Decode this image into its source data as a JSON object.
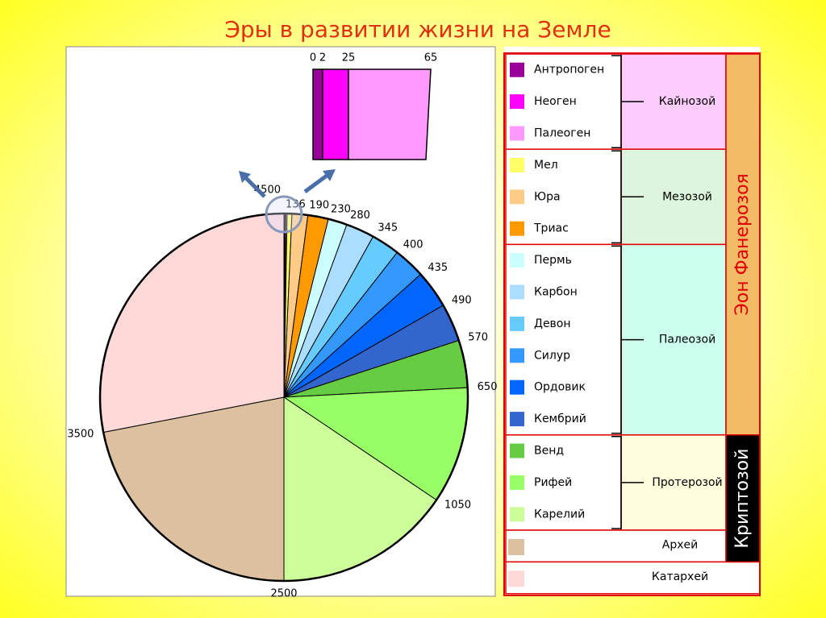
{
  "chart_data": {
    "type": "pie",
    "title": "Эры в развитии жизни на Земле",
    "categories": [
      "Антропоген",
      "Неоген",
      "Палеоген",
      "Мел",
      "Юра",
      "Триас",
      "Пермь",
      "Карбон",
      "Девон",
      "Силур",
      "Ордовик",
      "Кембрий",
      "Венд",
      "Рифей",
      "Карелий",
      "Архей",
      "Катархей"
    ],
    "values": [
      0.3,
      0.3,
      0.4,
      1.5,
      5,
      6.5,
      6,
      9,
      9,
      10,
      12,
      12,
      15,
      37,
      56,
      79,
      101
    ],
    "colors": [
      "#990099",
      "#ff00ff",
      "#ff99ff",
      "#ffff66",
      "#ffcc88",
      "#ff9900",
      "#ccffff",
      "#aaddff",
      "#66ccff",
      "#3399ff",
      "#0066ff",
      "#3366cc",
      "#66cc44",
      "#99ff66",
      "#ccff99",
      "#dcc0a0",
      "#ffd8d8"
    ],
    "boundaries": [
      0,
      2,
      25,
      65,
      136,
      190,
      230,
      280,
      345,
      400,
      435,
      490,
      570,
      650,
      1050,
      2500,
      3500,
      4500
    ],
    "eras": [
      "Кайнозой",
      "Мезозой",
      "Палеозой",
      "Протерозой"
    ],
    "eons": [
      "Эон Фанерозоя",
      "Криптозой"
    ]
  }
}
